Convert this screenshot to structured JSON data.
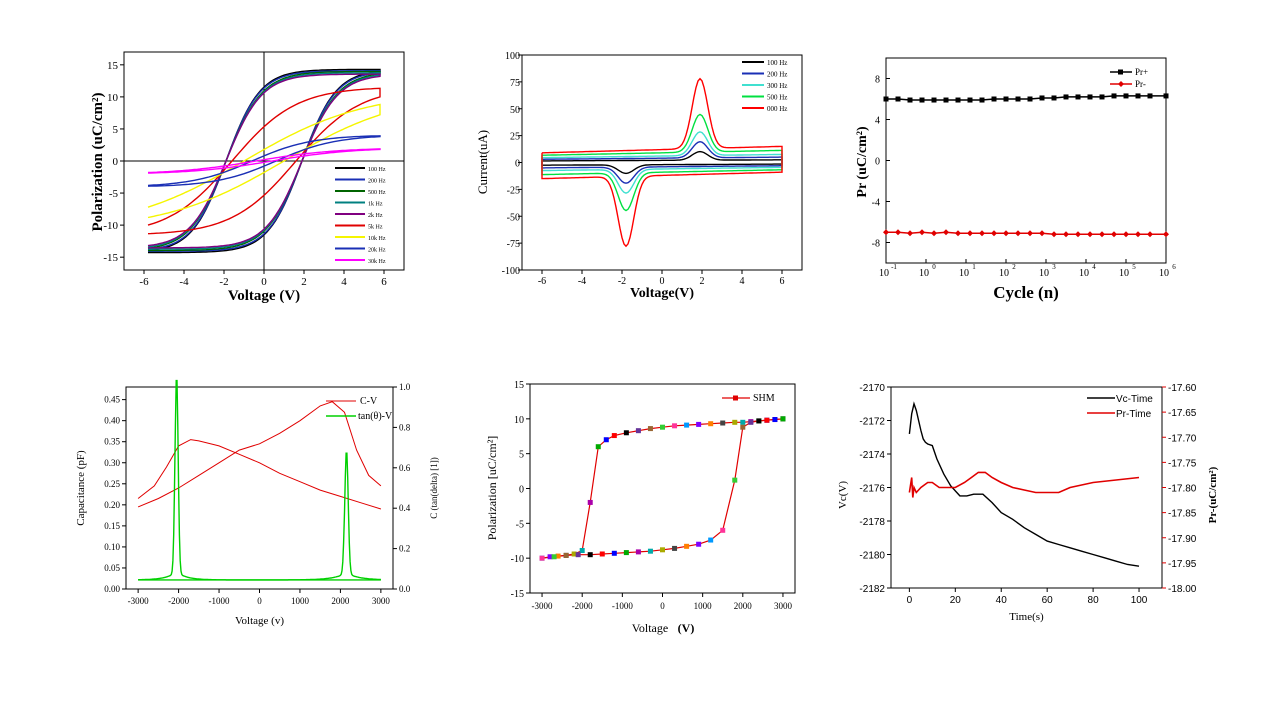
{
  "chart_data": [
    {
      "type": "line",
      "xlabel": "Voltage (V)",
      "ylabel": "Polarization (uC/cm²)",
      "xlim": [
        -7,
        7
      ],
      "ylim": [
        -17,
        17
      ],
      "xticks": [
        -6,
        -4,
        -2,
        0,
        2,
        4,
        6
      ],
      "yticks": [
        -15,
        -10,
        -5,
        0,
        5,
        10,
        15
      ],
      "legend_position": "bottom-right",
      "series": [
        {
          "name": "100 Hz",
          "color": "#000000",
          "vmax": 5.8,
          "ps": 14.0,
          "ec": 1.9,
          "sharp": 1.7
        },
        {
          "name": "200 Hz",
          "color": "#1a2fb5",
          "vmax": 5.8,
          "ps": 13.8,
          "ec": 1.9,
          "sharp": 1.7
        },
        {
          "name": "500 Hz",
          "color": "#006400",
          "vmax": 5.8,
          "ps": 13.6,
          "ec": 1.9,
          "sharp": 1.8
        },
        {
          "name": "1k Hz",
          "color": "#008080",
          "vmax": 5.8,
          "ps": 13.4,
          "ec": 1.9,
          "sharp": 1.8
        },
        {
          "name": "2k Hz",
          "color": "#800080",
          "vmax": 5.8,
          "ps": 13.2,
          "ec": 1.9,
          "sharp": 1.8
        },
        {
          "name": "5k Hz",
          "color": "#e00000",
          "vmax": 5.8,
          "ps": 10.0,
          "ec": 1.6,
          "sharp": 3.2
        },
        {
          "name": "10k Hz",
          "color": "#f5f500",
          "vmax": 5.8,
          "ps": 7.2,
          "ec": 1.0,
          "sharp": 6.0
        },
        {
          "name": "20k Hz",
          "color": "#1a2fb5",
          "vmax": 5.8,
          "ps": 3.8,
          "ec": 0.6,
          "sharp": 3.0
        },
        {
          "name": "30k Hz",
          "color": "#ff00ff",
          "vmax": 5.8,
          "ps": 1.8,
          "ec": 0.4,
          "sharp": 4.0
        }
      ]
    },
    {
      "type": "line",
      "xlabel": "Voltage(V)",
      "ylabel": "Current(uA)",
      "xlim": [
        -7,
        7
      ],
      "ylim": [
        -100,
        100
      ],
      "xticks": [
        -6,
        -4,
        -2,
        0,
        2,
        4,
        6
      ],
      "yticks": [
        -100,
        -75,
        -50,
        -25,
        0,
        25,
        50,
        75,
        100
      ],
      "legend_position": "top-right",
      "series": [
        {
          "name": "100 Hz",
          "color": "#000000",
          "peak": 8,
          "base": 2
        },
        {
          "name": "200 Hz",
          "color": "#1a2fb5",
          "peak": 15,
          "base": 4
        },
        {
          "name": "300 Hz",
          "color": "#40e0d0",
          "peak": 22,
          "base": 6
        },
        {
          "name": "500 Hz",
          "color": "#00e040",
          "peak": 35,
          "base": 9
        },
        {
          "name": "000 Hz",
          "color": "#ff0000",
          "peak": 65,
          "base": 12
        }
      ]
    },
    {
      "type": "scatter",
      "xlabel": "Cycle (n)",
      "ylabel": "Pr (uC/cm²)",
      "xscale": "log",
      "xlim_exp": [
        -1,
        6
      ],
      "ylim": [
        -10,
        10
      ],
      "xtick_base": "10",
      "xtick_exponents": [
        "-1",
        "0",
        "1",
        "2",
        "3",
        "4",
        "5",
        "6"
      ],
      "yticks": [
        -8,
        -4,
        0,
        4,
        8
      ],
      "legend_position": "top-right",
      "series": [
        {
          "name": "Pr+",
          "color": "#000000",
          "marker": "square",
          "exp": [
            -1,
            -0.7,
            -0.4,
            -0.1,
            0.2,
            0.5,
            0.8,
            1.1,
            1.4,
            1.7,
            2.0,
            2.3,
            2.6,
            2.9,
            3.2,
            3.5,
            3.8,
            4.1,
            4.4,
            4.7,
            5.0,
            5.3,
            5.6,
            6.0
          ],
          "values": [
            6.0,
            6.0,
            5.9,
            5.9,
            5.9,
            5.9,
            5.9,
            5.9,
            5.9,
            6.0,
            6.0,
            6.0,
            6.0,
            6.1,
            6.1,
            6.2,
            6.2,
            6.2,
            6.2,
            6.3,
            6.3,
            6.3,
            6.3,
            6.3
          ]
        },
        {
          "name": "Pr-",
          "color": "#e00000",
          "marker": "diamond",
          "exp": [
            -1,
            -0.7,
            -0.4,
            -0.1,
            0.2,
            0.5,
            0.8,
            1.1,
            1.4,
            1.7,
            2.0,
            2.3,
            2.6,
            2.9,
            3.2,
            3.5,
            3.8,
            4.1,
            4.4,
            4.7,
            5.0,
            5.3,
            5.6,
            6.0
          ],
          "values": [
            -7.0,
            -7.0,
            -7.1,
            -7.0,
            -7.1,
            -7.0,
            -7.1,
            -7.1,
            -7.1,
            -7.1,
            -7.1,
            -7.1,
            -7.1,
            -7.1,
            -7.2,
            -7.2,
            -7.2,
            -7.2,
            -7.2,
            -7.2,
            -7.2,
            -7.2,
            -7.2,
            -7.2
          ]
        }
      ],
      "legend_labels": [
        "Pr+",
        "Pr-"
      ]
    },
    {
      "type": "line",
      "xlabel": "Voltage (v)",
      "ylabel": "Capacitance (pF)",
      "ylabel_right": "C (tan(delta) [1])",
      "xlim": [
        -3300,
        3300
      ],
      "ylim": [
        0,
        0.48
      ],
      "ylim_right": [
        0,
        1.0
      ],
      "xticks": [
        -3000,
        -2000,
        -1000,
        0,
        1000,
        2000,
        3000
      ],
      "yticks": [
        "0.00",
        "0.05",
        "0.10",
        "0.15",
        "0.20",
        "0.25",
        "0.30",
        "0.35",
        "0.40",
        "0.45"
      ],
      "yticks_right": [
        "0.0",
        "0.2",
        "0.4",
        "0.6",
        "0.8",
        "1.0"
      ],
      "legend_position": "top-right",
      "series": [
        {
          "name": "C-V",
          "color": "#e00000",
          "axis": "left",
          "up": [
            [
              -3000,
              0.195
            ],
            [
              -2500,
              0.215
            ],
            [
              -2000,
              0.24
            ],
            [
              -1500,
              0.27
            ],
            [
              -1000,
              0.3
            ],
            [
              -500,
              0.33
            ],
            [
              0,
              0.345
            ],
            [
              500,
              0.37
            ],
            [
              1000,
              0.4
            ],
            [
              1500,
              0.435
            ],
            [
              1800,
              0.445
            ],
            [
              2100,
              0.42
            ],
            [
              2400,
              0.33
            ],
            [
              2700,
              0.27
            ],
            [
              3000,
              0.245
            ]
          ],
          "down": [
            [
              3000,
              0.19
            ],
            [
              2500,
              0.205
            ],
            [
              2000,
              0.22
            ],
            [
              1500,
              0.235
            ],
            [
              1000,
              0.255
            ],
            [
              500,
              0.275
            ],
            [
              0,
              0.3
            ],
            [
              -500,
              0.32
            ],
            [
              -1000,
              0.34
            ],
            [
              -1500,
              0.352
            ],
            [
              -1700,
              0.355
            ],
            [
              -2000,
              0.34
            ],
            [
              -2300,
              0.29
            ],
            [
              -2600,
              0.245
            ],
            [
              -3000,
              0.215
            ]
          ]
        },
        {
          "name": "tan(θ)-V",
          "color": "#00d000",
          "axis": "right",
          "peaks": [
            {
              "x": -2050,
              "h": 0.98,
              "w": 55
            },
            {
              "x": 2150,
              "h": 0.61,
              "w": 60
            }
          ],
          "base": 0.045
        }
      ]
    },
    {
      "type": "line",
      "xlabel": "Voltage",
      "xlabel_unit": "(V)",
      "ylabel": "Polarization [uC/cm²]",
      "xlim": [
        -3300,
        3300
      ],
      "ylim": [
        -15,
        15
      ],
      "xticks": [
        -3000,
        -2000,
        -1000,
        0,
        1000,
        2000,
        3000
      ],
      "yticks": [
        -15,
        -10,
        -5,
        0,
        5,
        10,
        15
      ],
      "legend_position": "top-right",
      "series": [
        {
          "name": "SHM",
          "color": "#e00000",
          "upper": [
            [
              3000,
              10.0
            ],
            [
              2800,
              9.9
            ],
            [
              2600,
              9.8
            ],
            [
              2400,
              9.7
            ],
            [
              2200,
              9.6
            ],
            [
              2000,
              9.5
            ],
            [
              1800,
              9.5
            ],
            [
              1500,
              9.4
            ],
            [
              1200,
              9.3
            ],
            [
              900,
              9.2
            ],
            [
              600,
              9.1
            ],
            [
              300,
              9.0
            ],
            [
              0,
              8.8
            ],
            [
              -300,
              8.6
            ],
            [
              -600,
              8.3
            ],
            [
              -900,
              8.0
            ],
            [
              -1200,
              7.6
            ],
            [
              -1400,
              7.0
            ],
            [
              -1600,
              6.0
            ],
            [
              -1800,
              -2.0
            ],
            [
              -2000,
              -8.9
            ],
            [
              -2200,
              -9.4
            ],
            [
              -2400,
              -9.6
            ],
            [
              -2600,
              -9.7
            ],
            [
              -2800,
              -9.8
            ],
            [
              -3000,
              -10.0
            ]
          ],
          "lower": [
            [
              -3000,
              -10.0
            ],
            [
              -2700,
              -9.8
            ],
            [
              -2400,
              -9.6
            ],
            [
              -2100,
              -9.5
            ],
            [
              -1800,
              -9.5
            ],
            [
              -1500,
              -9.4
            ],
            [
              -1200,
              -9.3
            ],
            [
              -900,
              -9.2
            ],
            [
              -600,
              -9.1
            ],
            [
              -300,
              -9.0
            ],
            [
              0,
              -8.8
            ],
            [
              300,
              -8.6
            ],
            [
              600,
              -8.3
            ],
            [
              900,
              -8.0
            ],
            [
              1200,
              -7.4
            ],
            [
              1500,
              -6.0
            ],
            [
              1800,
              1.2
            ],
            [
              2000,
              8.8
            ],
            [
              2200,
              9.5
            ],
            [
              2400,
              9.7
            ],
            [
              2600,
              9.8
            ],
            [
              2800,
              9.9
            ],
            [
              3000,
              10.0
            ]
          ]
        }
      ],
      "marker_colors": [
        "#000000",
        "#ff0000",
        "#0000ff",
        "#00aa00",
        "#aa00aa",
        "#00aaaa",
        "#aaaa00",
        "#444444",
        "#ff7f00",
        "#7f00ff",
        "#0099ff",
        "#ff3399",
        "#33cc33",
        "#996633",
        "#663399"
      ]
    },
    {
      "type": "line",
      "xlabel": "Time(s)",
      "ylabel": "Vc(V)",
      "ylabel_right": "Pr-(uC/cm²)",
      "xlim": [
        -8,
        110
      ],
      "ylim": [
        -2182,
        -2170
      ],
      "ylim_right": [
        -18.0,
        -17.6
      ],
      "xticks": [
        0,
        20,
        40,
        60,
        80,
        100
      ],
      "yticks": [
        -2182,
        -2180,
        -2178,
        -2176,
        -2174,
        -2172,
        -2170
      ],
      "yticks_right": [
        "-18.00",
        "-17.95",
        "-17.90",
        "-17.85",
        "-17.80",
        "-17.75",
        "-17.70",
        "-17.65",
        "-17.60"
      ],
      "legend_position": "top-right",
      "series": [
        {
          "name": "Vc-Time",
          "color": "#000000",
          "axis": "left",
          "x": [
            0,
            1,
            2,
            3,
            4,
            5,
            6,
            7,
            8,
            10,
            12,
            15,
            18,
            22,
            25,
            28,
            32,
            36,
            40,
            45,
            50,
            55,
            60,
            65,
            70,
            75,
            80,
            85,
            90,
            95,
            100
          ],
          "y": [
            -2172.8,
            -2171.6,
            -2171.0,
            -2171.4,
            -2172.0,
            -2172.6,
            -2173.1,
            -2173.3,
            -2173.4,
            -2173.5,
            -2174.3,
            -2175.2,
            -2175.9,
            -2176.5,
            -2176.5,
            -2176.4,
            -2176.4,
            -2176.9,
            -2177.5,
            -2177.9,
            -2178.4,
            -2178.8,
            -2179.2,
            -2179.4,
            -2179.6,
            -2179.8,
            -2180.0,
            -2180.2,
            -2180.4,
            -2180.6,
            -2180.7
          ]
        },
        {
          "name": "Pr-Time",
          "color": "#e00000",
          "axis": "right",
          "x": [
            0,
            1,
            1.5,
            2,
            3,
            5,
            8,
            10,
            13,
            16,
            20,
            24,
            27,
            30,
            33,
            36,
            40,
            45,
            50,
            55,
            60,
            65,
            70,
            75,
            80,
            90,
            100
          ],
          "y": [
            -17.81,
            -17.78,
            -17.82,
            -17.8,
            -17.81,
            -17.8,
            -17.79,
            -17.79,
            -17.8,
            -17.8,
            -17.8,
            -17.79,
            -17.78,
            -17.77,
            -17.77,
            -17.78,
            -17.79,
            -17.8,
            -17.805,
            -17.81,
            -17.81,
            -17.81,
            -17.8,
            -17.795,
            -17.79,
            -17.785,
            -17.78
          ]
        }
      ]
    }
  ]
}
